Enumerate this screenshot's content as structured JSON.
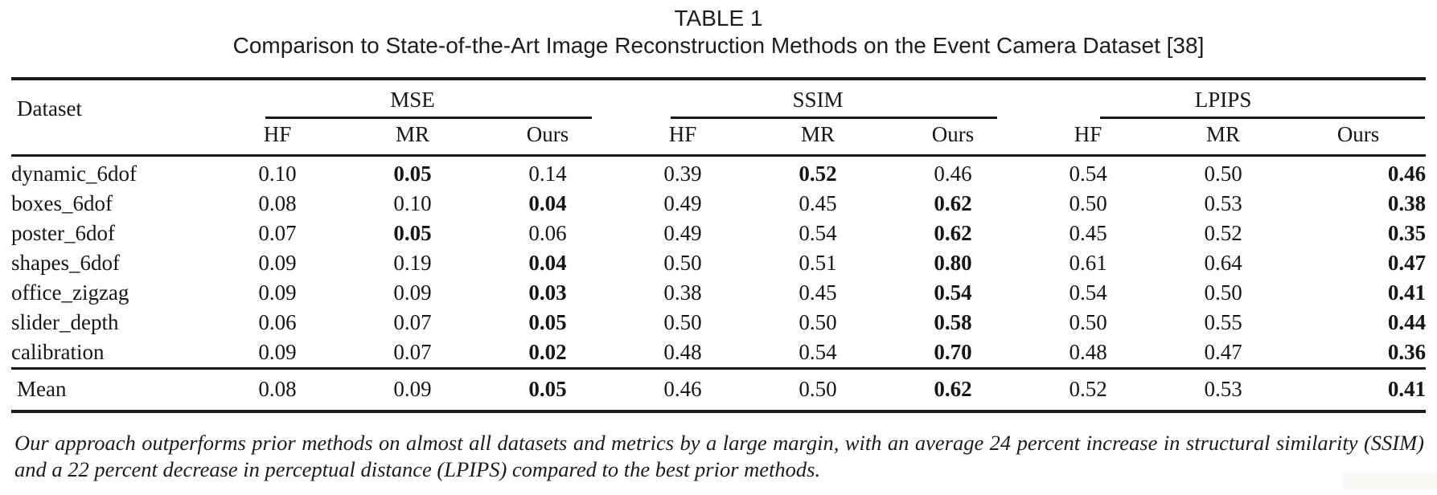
{
  "page": {
    "title": "TABLE 1",
    "subtitle": "Comparison to State-of-the-Art Image Reconstruction Methods on the Event Camera Dataset [38]"
  },
  "table": {
    "dataset_header": "Dataset",
    "groups": [
      {
        "label": "MSE"
      },
      {
        "label": "SSIM"
      },
      {
        "label": "LPIPS"
      }
    ],
    "subcolumns": [
      "HF",
      "MR",
      "Ours",
      "HF",
      "MR",
      "Ours",
      "HF",
      "MR",
      "Ours"
    ],
    "rows": [
      {
        "dataset": "dynamic_6dof",
        "values": [
          "0.10",
          "0.05",
          "0.14",
          "0.39",
          "0.52",
          "0.46",
          "0.54",
          "0.50",
          "0.46"
        ],
        "bold": [
          1,
          4,
          8
        ]
      },
      {
        "dataset": "boxes_6dof",
        "values": [
          "0.08",
          "0.10",
          "0.04",
          "0.49",
          "0.45",
          "0.62",
          "0.50",
          "0.53",
          "0.38"
        ],
        "bold": [
          2,
          5,
          8
        ]
      },
      {
        "dataset": "poster_6dof",
        "values": [
          "0.07",
          "0.05",
          "0.06",
          "0.49",
          "0.54",
          "0.62",
          "0.45",
          "0.52",
          "0.35"
        ],
        "bold": [
          1,
          5,
          8
        ]
      },
      {
        "dataset": "shapes_6dof",
        "values": [
          "0.09",
          "0.19",
          "0.04",
          "0.50",
          "0.51",
          "0.80",
          "0.61",
          "0.64",
          "0.47"
        ],
        "bold": [
          2,
          5,
          8
        ]
      },
      {
        "dataset": "office_zigzag",
        "values": [
          "0.09",
          "0.09",
          "0.03",
          "0.38",
          "0.45",
          "0.54",
          "0.54",
          "0.50",
          "0.41"
        ],
        "bold": [
          2,
          5,
          8
        ]
      },
      {
        "dataset": "slider_depth",
        "values": [
          "0.06",
          "0.07",
          "0.05",
          "0.50",
          "0.50",
          "0.58",
          "0.50",
          "0.55",
          "0.44"
        ],
        "bold": [
          2,
          5,
          8
        ]
      },
      {
        "dataset": "calibration",
        "values": [
          "0.09",
          "0.07",
          "0.02",
          "0.48",
          "0.54",
          "0.70",
          "0.48",
          "0.47",
          "0.36"
        ],
        "bold": [
          2,
          5,
          8
        ]
      }
    ],
    "mean_row": {
      "dataset": "Mean",
      "values": [
        "0.08",
        "0.09",
        "0.05",
        "0.46",
        "0.50",
        "0.62",
        "0.52",
        "0.53",
        "0.41"
      ],
      "bold": [
        2,
        5,
        8
      ]
    }
  },
  "footnote": "Our approach outperforms prior methods on almost all datasets and metrics by a large margin, with an average 24 percent increase in structural similarity (SSIM) and a 22 percent decrease in perceptual distance (LPIPS) compared to the best prior methods."
}
